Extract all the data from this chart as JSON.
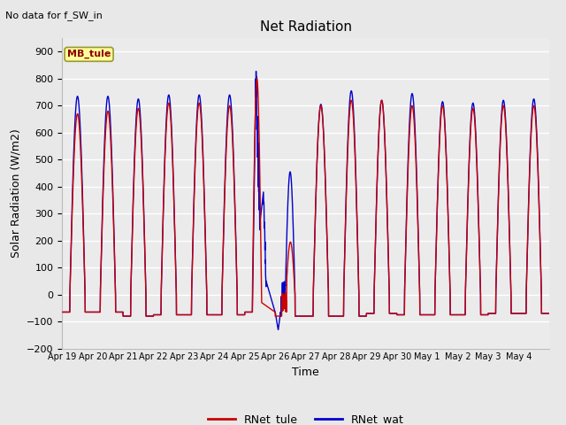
{
  "title": "Net Radiation",
  "suptitle": "No data for f_SW_in",
  "xlabel": "Time",
  "ylabel": "Solar Radiation (W/m2)",
  "ylim": [
    -200,
    950
  ],
  "yticks": [
    -200,
    -100,
    0,
    100,
    200,
    300,
    400,
    500,
    600,
    700,
    800,
    900
  ],
  "color_tule": "#cc0000",
  "color_wat": "#0000cc",
  "legend_labels": [
    "RNet_tule",
    "RNet_wat"
  ],
  "annotation_label": "MB_tule",
  "annotation_bg": "#ffff99",
  "annotation_border": "#999933",
  "bg_color": "#e8e8e8",
  "plot_bg": "#ebebeb",
  "grid_color": "#ffffff",
  "days": [
    "Apr 19",
    "Apr 20",
    "Apr 21",
    "Apr 22",
    "Apr 23",
    "Apr 24",
    "Apr 25",
    "Apr 26",
    "Apr 27",
    "Apr 28",
    "Apr 29",
    "Apr 30",
    "May 1",
    "May 2",
    "May 3",
    "May 4"
  ]
}
